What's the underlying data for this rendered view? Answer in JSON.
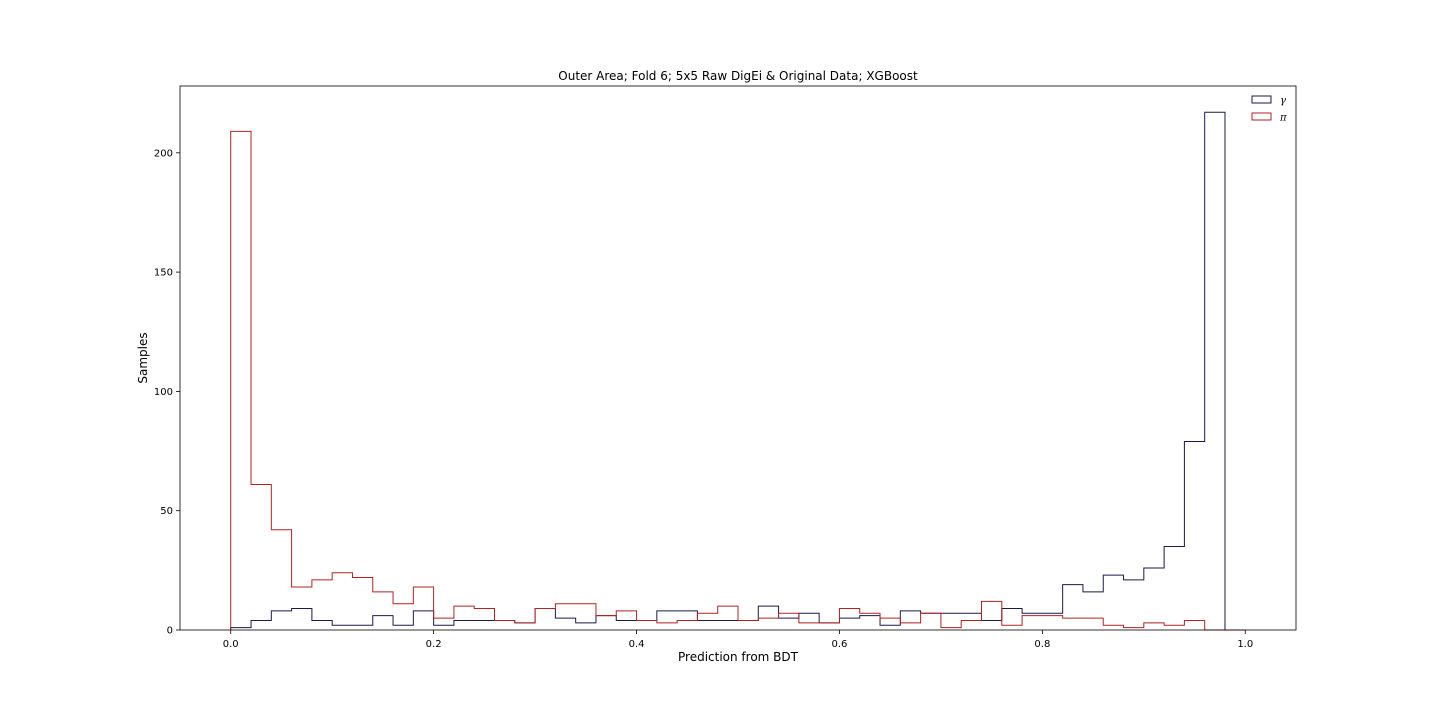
{
  "chart_data": {
    "type": "histogram",
    "title": "Outer Area; Fold 6; 5x5 Raw DigEi & Original Data; XGBoost",
    "xlabel": "Prediction from BDT",
    "ylabel": "Samples",
    "xlim": [
      -0.05,
      1.05
    ],
    "ylim": [
      0,
      228
    ],
    "xticks": [
      0.0,
      0.2,
      0.4,
      0.6,
      0.8,
      1.0
    ],
    "xtick_labels": [
      "0.0",
      "0.2",
      "0.4",
      "0.6",
      "0.8",
      "1.0"
    ],
    "yticks": [
      0,
      50,
      100,
      150,
      200
    ],
    "ytick_labels": [
      "0",
      "50",
      "100",
      "150",
      "200"
    ],
    "grid": false,
    "legend_placement": "top-right",
    "bin_edges": [
      0.0,
      0.02,
      0.04,
      0.06,
      0.08,
      0.1,
      0.12,
      0.14,
      0.16,
      0.18,
      0.2,
      0.22,
      0.24,
      0.26,
      0.28,
      0.3,
      0.32,
      0.34,
      0.36,
      0.38,
      0.4,
      0.42,
      0.44,
      0.46,
      0.48,
      0.5,
      0.52,
      0.54,
      0.56,
      0.58,
      0.6,
      0.62,
      0.64,
      0.66,
      0.68,
      0.7,
      0.72,
      0.74,
      0.76,
      0.78,
      0.8,
      0.82,
      0.84,
      0.86,
      0.88,
      0.9,
      0.92,
      0.94,
      0.96,
      0.98,
      1.0
    ],
    "series": [
      {
        "name": "γ",
        "color": "#1a1a4d",
        "values": [
          1,
          4,
          8,
          9,
          4,
          2,
          2,
          6,
          2,
          8,
          2,
          4,
          4,
          4,
          3,
          9,
          5,
          3,
          6,
          4,
          4,
          8,
          8,
          4,
          4,
          4,
          10,
          5,
          7,
          3,
          5,
          6,
          2,
          8,
          7,
          7,
          7,
          4,
          9,
          7,
          7,
          19,
          16,
          23,
          21,
          26,
          35,
          79,
          217,
          0
        ]
      },
      {
        "name": "π",
        "color": "#b22222",
        "values": [
          209,
          61,
          42,
          18,
          21,
          24,
          22,
          16,
          11,
          18,
          5,
          10,
          9,
          4,
          3,
          9,
          11,
          11,
          6,
          8,
          4,
          3,
          4,
          7,
          10,
          4,
          5,
          7,
          3,
          3,
          9,
          7,
          5,
          3,
          7,
          1,
          4,
          12,
          2,
          6,
          6,
          5,
          5,
          2,
          1,
          3,
          2,
          4,
          0,
          0
        ]
      }
    ]
  }
}
